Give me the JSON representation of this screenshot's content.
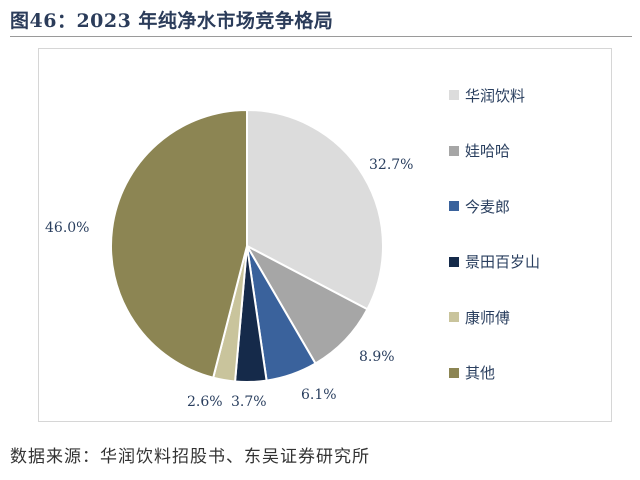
{
  "figure": {
    "title": "图46：2023 年纯净水市场竞争格局",
    "source": "数据来源：华润饮料招股书、东吴证券研究所"
  },
  "chart_data": {
    "type": "pie",
    "unit": "%",
    "legend_position": "right",
    "slices": [
      {
        "label": "华润饮料",
        "value": 32.7,
        "display": "32.7%",
        "color": "#dcdcdc"
      },
      {
        "label": "娃哈哈",
        "value": 8.9,
        "display": "8.9%",
        "color": "#a6a6a6"
      },
      {
        "label": "今麦郎",
        "value": 6.1,
        "display": "6.1%",
        "color": "#3a629c"
      },
      {
        "label": "景田百岁山",
        "value": 3.7,
        "display": "3.7%",
        "color": "#152a4a"
      },
      {
        "label": "康师傅",
        "value": 2.6,
        "display": "2.6%",
        "color": "#c9c49c"
      },
      {
        "label": "其他",
        "value": 46.0,
        "display": "46.0%",
        "color": "#8c8553"
      }
    ]
  }
}
